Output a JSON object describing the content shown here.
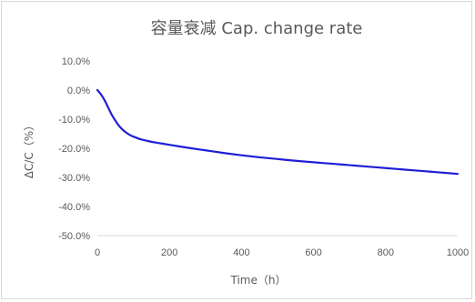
{
  "chart_data": {
    "type": "line",
    "title": "容量衰减 Cap. change rate",
    "xlabel": "Time（h）",
    "ylabel": "ΔC/C（%）",
    "xlim": [
      0,
      1000
    ],
    "ylim": [
      -50,
      10
    ],
    "xticks": [
      0,
      200,
      400,
      600,
      800,
      1000
    ],
    "yticks": [
      10,
      0,
      -10,
      -20,
      -30,
      -40,
      -50
    ],
    "ytick_labels": [
      "10.0%",
      "0.0%",
      "-10.0%",
      "-20.0%",
      "-30.0%",
      "-40.0%",
      "-50.0%"
    ],
    "grid": false,
    "line_color": "#1f1fd6",
    "series": [
      {
        "x": [
          0,
          10,
          20,
          30,
          40,
          50,
          60,
          70,
          80,
          90,
          100,
          120,
          140,
          160,
          180,
          200,
          250,
          300,
          350,
          400,
          450,
          500,
          550,
          600,
          650,
          700,
          750,
          800,
          850,
          900,
          950,
          1000
        ],
        "y": [
          0,
          -1.5,
          -3.5,
          -6,
          -8.5,
          -10.5,
          -12.3,
          -13.6,
          -14.6,
          -15.4,
          -16,
          -16.9,
          -17.5,
          -18,
          -18.4,
          -18.8,
          -19.8,
          -20.7,
          -21.6,
          -22.4,
          -23.1,
          -23.7,
          -24.3,
          -24.8,
          -25.3,
          -25.8,
          -26.3,
          -26.8,
          -27.3,
          -27.8,
          -28.3,
          -28.8
        ]
      }
    ]
  }
}
